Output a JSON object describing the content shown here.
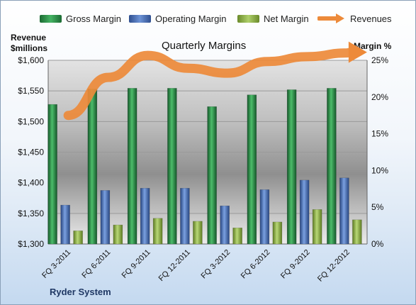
{
  "chart_data": {
    "type": "bar",
    "title": "Quarterly Margins",
    "categories": [
      "FQ 3-2011",
      "FQ 6-2011",
      "FQ 9-2011",
      "FQ 12-2011",
      "FQ 3-2012",
      "FQ 6-2012",
      "FQ 9-2012",
      "FQ 12-2012"
    ],
    "series": [
      {
        "name": "Gross Margin",
        "axis": "right",
        "values": [
          19.0,
          21.1,
          21.2,
          21.2,
          18.7,
          20.3,
          21.0,
          21.2
        ],
        "color": "#2e8b46"
      },
      {
        "name": "Operating Margin",
        "axis": "right",
        "values": [
          5.3,
          7.3,
          7.6,
          7.6,
          5.2,
          7.4,
          8.7,
          9.0
        ],
        "color": "#4a72b8"
      },
      {
        "name": "Net Margin",
        "axis": "right",
        "values": [
          1.8,
          2.6,
          3.5,
          3.1,
          2.2,
          3.0,
          4.7,
          3.3
        ],
        "color": "#8fb04a"
      },
      {
        "name": "Revenues",
        "axis": "left",
        "type": "line",
        "values": [
          1510,
          1572,
          1608,
          1587,
          1579,
          1598,
          1606,
          1612
        ],
        "color": "#ed8a3a"
      }
    ],
    "left_axis": {
      "title_line1": "Revenue",
      "title_line2": "$millions",
      "ticks": [
        "$1,300",
        "$1,350",
        "$1,400",
        "$1,450",
        "$1,500",
        "$1,550",
        "$1,600"
      ],
      "ylim": [
        1300,
        1600
      ]
    },
    "right_axis": {
      "title": "Margin %",
      "ticks": [
        "0%",
        "5%",
        "10%",
        "15%",
        "20%",
        "25%"
      ],
      "ylim": [
        0,
        25
      ]
    },
    "legend_position": "top",
    "grid": true
  },
  "footer": {
    "brand": "Ryder System"
  }
}
